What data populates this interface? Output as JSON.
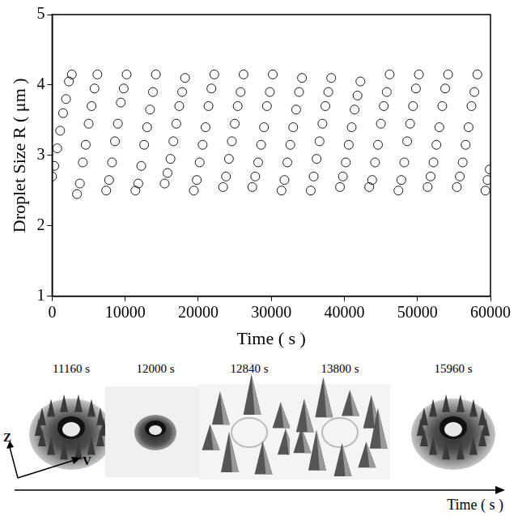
{
  "chart_data": {
    "type": "scatter",
    "x_label": "Time ( s )",
    "y_label": "Droplet Size R ( μm )",
    "xlim": [
      0,
      60000
    ],
    "xticks": [
      0,
      10000,
      20000,
      30000,
      40000,
      50000,
      60000
    ],
    "ylim": [
      1,
      5
    ],
    "yticks": [
      1,
      2,
      3,
      4,
      5
    ],
    "grid": false,
    "series": [
      {
        "color": "#000000",
        "marker": "circle",
        "x": [
          0,
          300,
          700,
          1100,
          1500,
          1900,
          2300,
          2700,
          3400,
          3800,
          4200,
          4600,
          5000,
          5400,
          5800,
          6200,
          7400,
          7800,
          8200,
          8600,
          9000,
          9400,
          9800,
          10200,
          11400,
          11800,
          12200,
          12600,
          13000,
          13400,
          13800,
          14200,
          15400,
          15800,
          16200,
          16600,
          17000,
          17400,
          17800,
          18200,
          19400,
          19800,
          20200,
          20600,
          21000,
          21400,
          21800,
          22200,
          23400,
          23800,
          24200,
          24600,
          25000,
          25400,
          25800,
          26200,
          27400,
          27800,
          28200,
          28600,
          29000,
          29400,
          29800,
          30200,
          31400,
          31800,
          32200,
          32600,
          33000,
          33400,
          33800,
          34200,
          35400,
          35800,
          36200,
          36600,
          37000,
          37400,
          37800,
          38200,
          39400,
          39800,
          40200,
          40600,
          41000,
          41400,
          41800,
          42200,
          43400,
          43800,
          44200,
          44600,
          45000,
          45400,
          45800,
          46200,
          47400,
          47800,
          48200,
          48600,
          49000,
          49400,
          49800,
          50200,
          51400,
          51800,
          52200,
          52600,
          53000,
          53400,
          53800,
          54200,
          55400,
          55800,
          56200,
          56600,
          57000,
          57400,
          57800,
          58200,
          59300,
          59600,
          59900
        ],
        "values": [
          2.7,
          2.85,
          3.1,
          3.35,
          3.6,
          3.8,
          4.05,
          4.15,
          2.45,
          2.6,
          2.9,
          3.15,
          3.45,
          3.7,
          3.95,
          4.15,
          2.5,
          2.65,
          2.9,
          3.2,
          3.45,
          3.75,
          3.95,
          4.15,
          2.5,
          2.6,
          2.85,
          3.15,
          3.4,
          3.65,
          3.9,
          4.15,
          2.6,
          2.75,
          2.95,
          3.2,
          3.45,
          3.7,
          3.9,
          4.1,
          2.5,
          2.65,
          2.9,
          3.15,
          3.4,
          3.7,
          3.95,
          4.15,
          2.55,
          2.7,
          2.95,
          3.2,
          3.45,
          3.7,
          3.9,
          4.15,
          2.55,
          2.7,
          2.9,
          3.15,
          3.4,
          3.7,
          3.9,
          4.15,
          2.5,
          2.65,
          2.9,
          3.15,
          3.4,
          3.65,
          3.9,
          4.1,
          2.5,
          2.7,
          2.95,
          3.2,
          3.45,
          3.7,
          3.9,
          4.1,
          2.55,
          2.7,
          2.9,
          3.15,
          3.4,
          3.65,
          3.85,
          4.05,
          2.55,
          2.65,
          2.9,
          3.15,
          3.45,
          3.7,
          3.9,
          4.15,
          2.5,
          2.65,
          2.9,
          3.2,
          3.45,
          3.7,
          3.95,
          4.15,
          2.55,
          2.7,
          2.9,
          3.15,
          3.4,
          3.7,
          3.95,
          4.15,
          2.55,
          2.7,
          2.9,
          3.15,
          3.4,
          3.7,
          3.9,
          4.15,
          2.5,
          2.65,
          2.8
        ]
      }
    ]
  },
  "image_strip": {
    "frame_labels": [
      "11160 s",
      "12000 s",
      "12840 s",
      "13800 s",
      "15960 s"
    ],
    "axis_labels": [
      "Z",
      "V"
    ],
    "arrow_label": "Time ( s )"
  }
}
